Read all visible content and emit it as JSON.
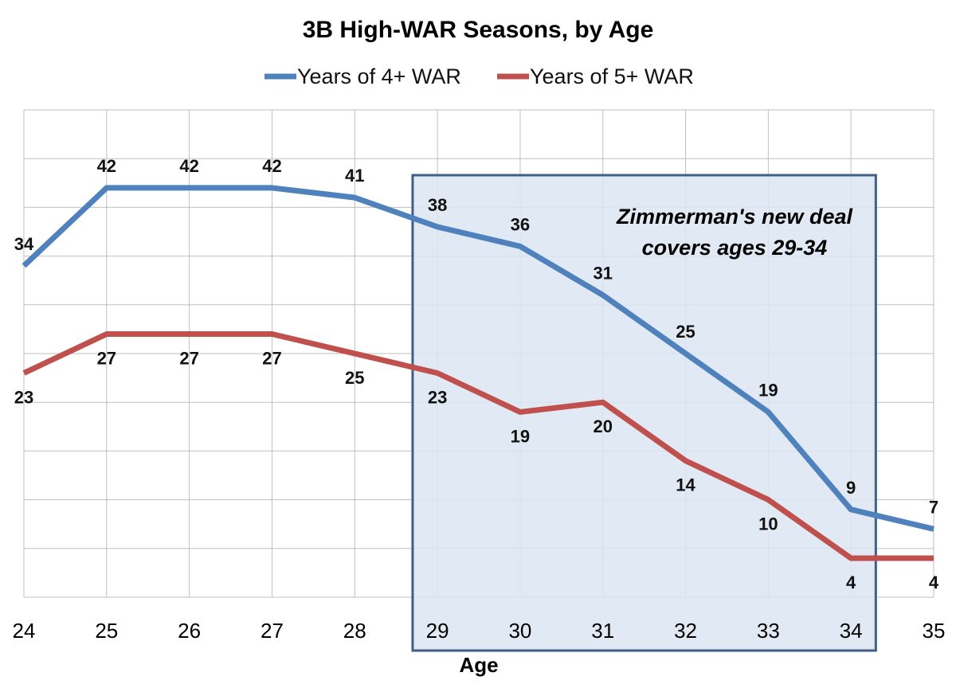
{
  "chart_data": {
    "type": "line",
    "title": "3B High-WAR Seasons, by Age",
    "xlabel": "Age",
    "ylabel": "",
    "x": [
      24,
      25,
      26,
      27,
      28,
      29,
      30,
      31,
      32,
      33,
      34,
      35
    ],
    "ylim": [
      0,
      50
    ],
    "grid": true,
    "legend": "top",
    "series": [
      {
        "name": "Years of 4+ WAR",
        "color": "#4f81bd",
        "values": [
          34,
          42,
          42,
          42,
          41,
          38,
          36,
          31,
          25,
          19,
          9,
          7
        ]
      },
      {
        "name": "Years of 5+ WAR",
        "color": "#c0504d",
        "values": [
          23,
          27,
          27,
          27,
          25,
          23,
          19,
          20,
          14,
          10,
          4,
          4
        ]
      }
    ],
    "highlight": {
      "x_range": [
        29,
        34
      ],
      "fill": "#dce6f2",
      "border": "#3f5f86",
      "text": [
        "Zimmerman's new deal",
        "covers ages 29-34"
      ]
    }
  }
}
